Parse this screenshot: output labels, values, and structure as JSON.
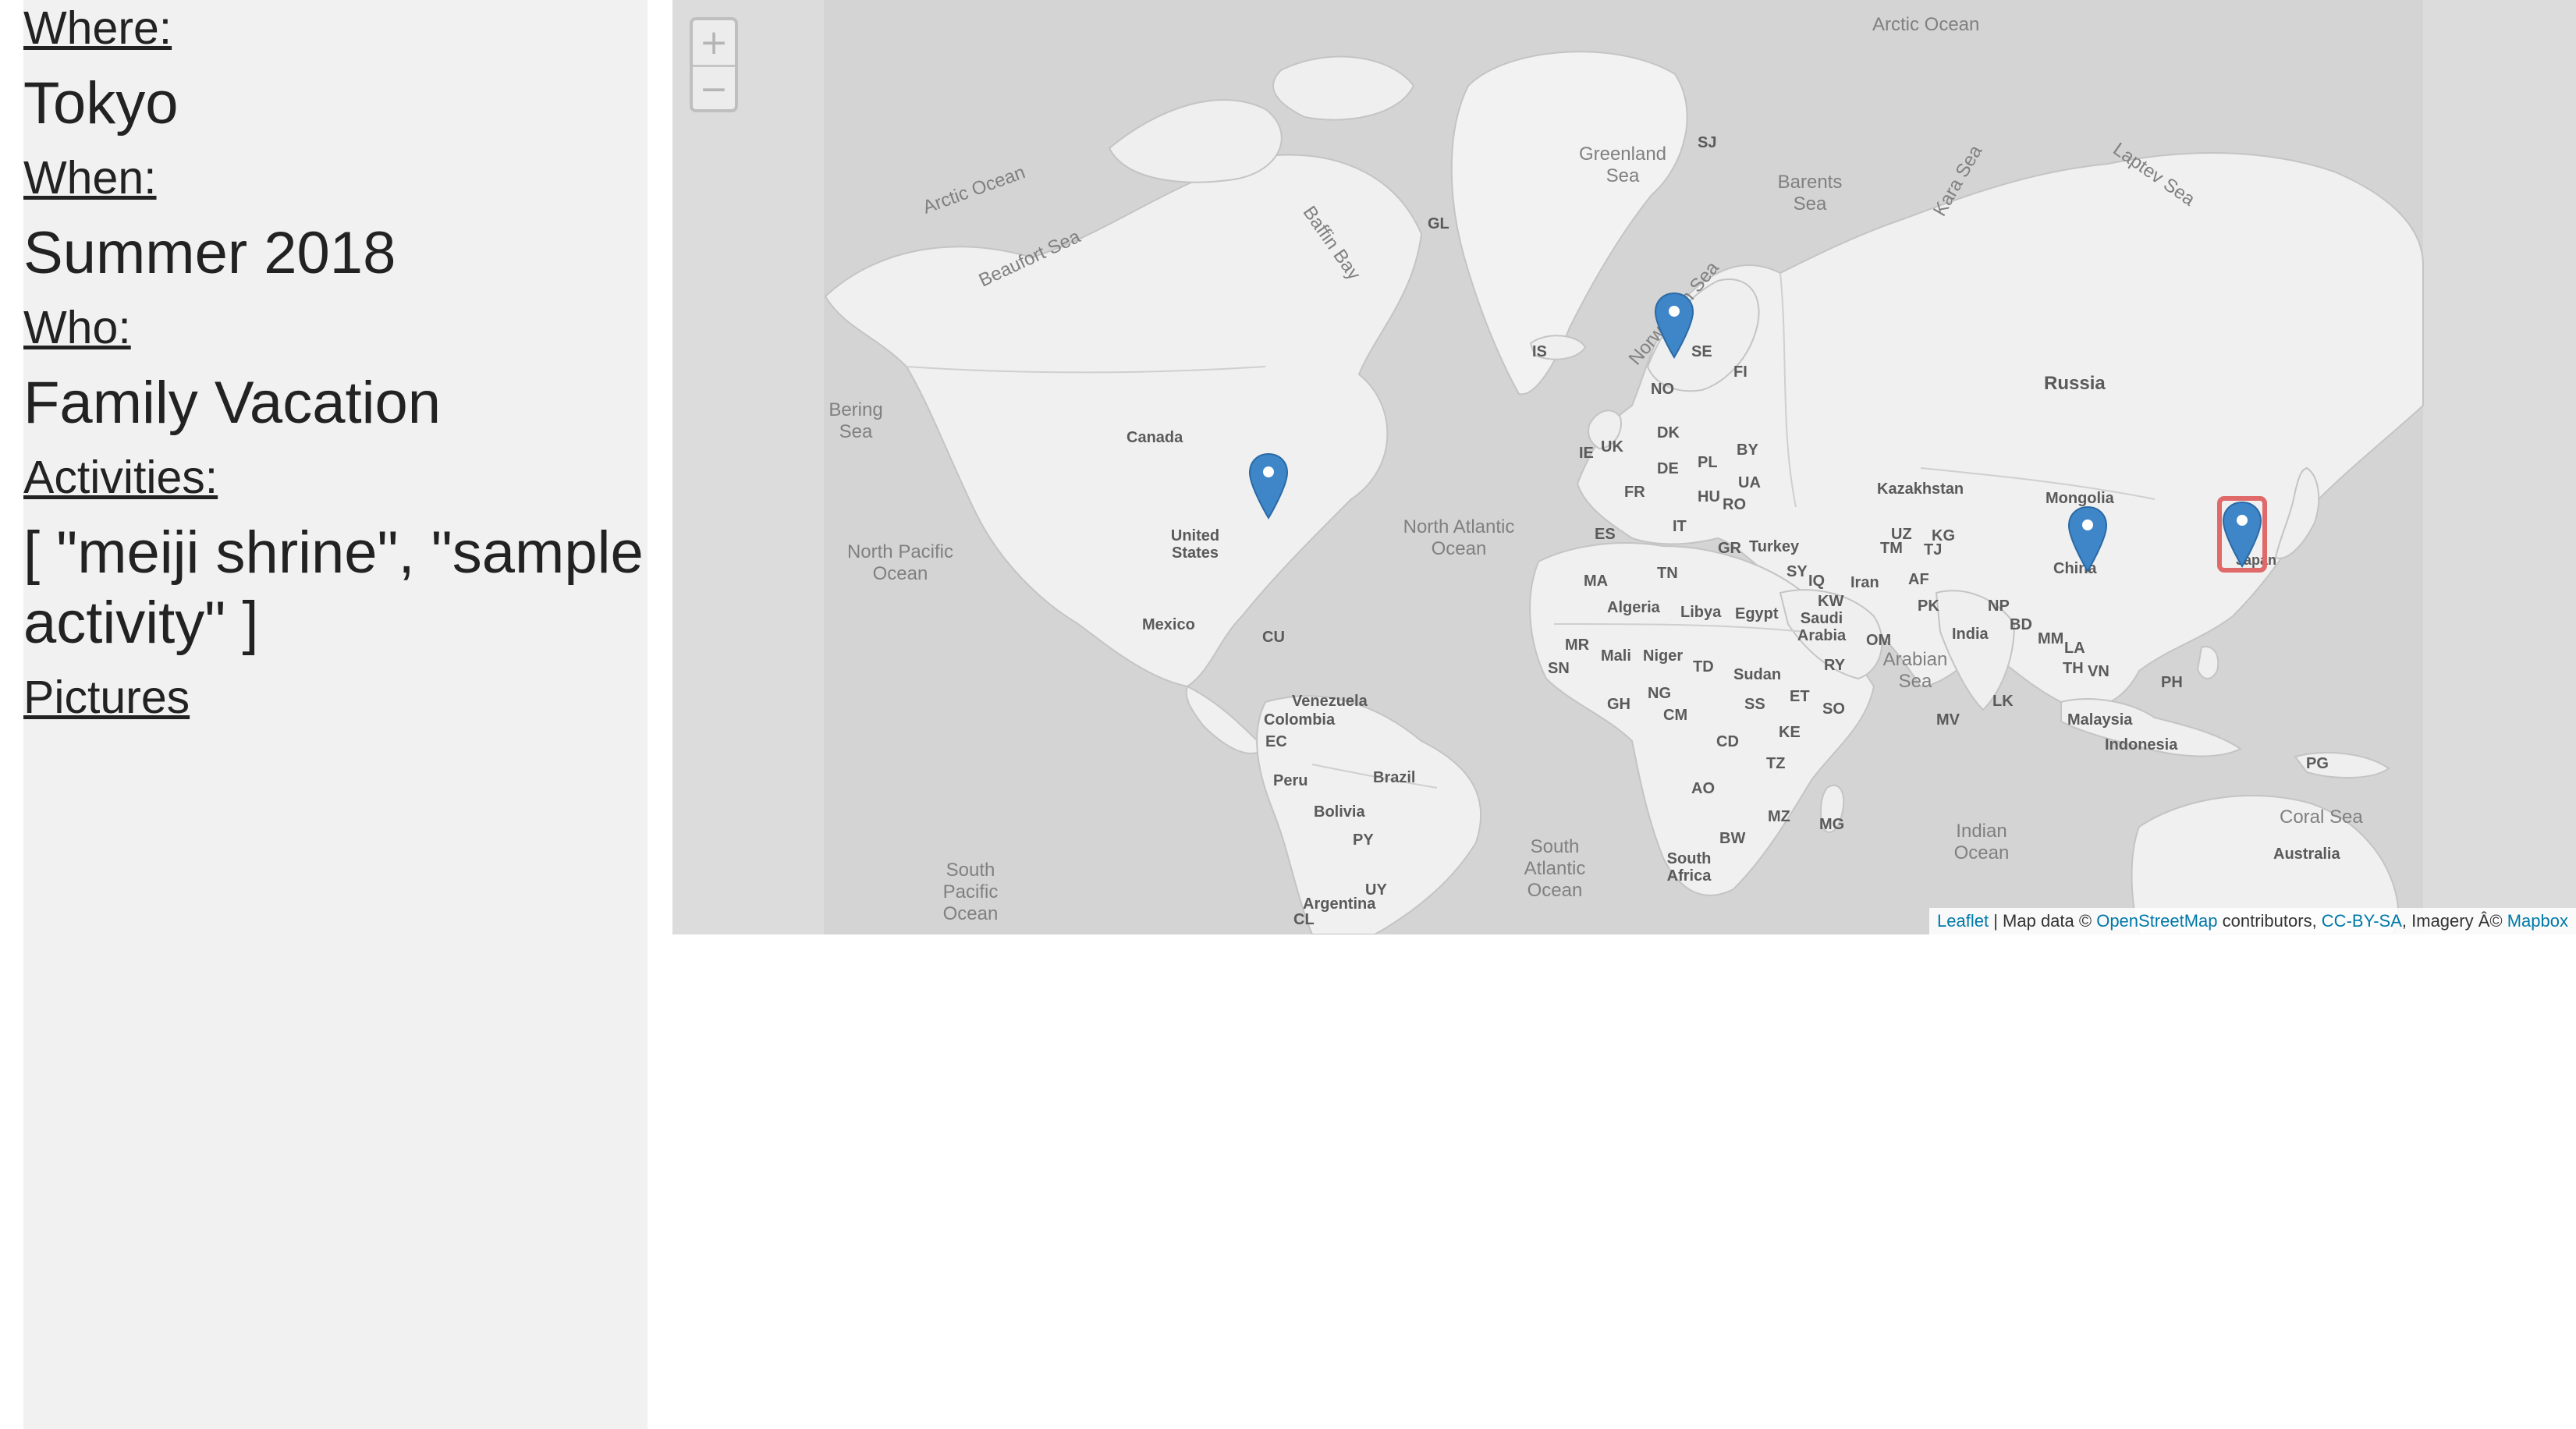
{
  "sidebar": {
    "where_label": "Where:",
    "where_value": "Tokyo",
    "when_label": "When:",
    "when_value": "Summer 2018",
    "who_label": "Who:",
    "who_value": "Family Vacation",
    "activities_label": "Activities:",
    "activities_value": "[ \"meiji shrine\", \"sample activity\" ]",
    "pictures_link": "Pictures"
  },
  "map": {
    "zoom_in": "+",
    "zoom_out": "−",
    "marker_color": "#3f86c8",
    "selected_outline_color": "#e06a6a",
    "labels": {
      "arctic_ocean_top": "Arctic Ocean",
      "arctic_ocean_left": "Arctic Ocean",
      "greenland_sea": "Greenland Sea",
      "barents_sea": "Barents Sea",
      "kara_sea": "Kara Sea",
      "laptev_sea": "Laptev Sea",
      "beaufort_sea": "Beaufort Sea",
      "baffin_bay": "Baffin Bay",
      "norwegian_sea": "Norwegian Sea",
      "bering_sea": "Bering Sea",
      "north_pacific": "North Pacific Ocean",
      "north_atlantic": "North Atlantic Ocean",
      "south_pacific": "South Pacific Ocean",
      "south_atlantic": "South Atlantic Ocean",
      "indian_ocean": "Indian Ocean",
      "arabian_sea": "Arabian Sea",
      "coral_sea": "Coral Sea",
      "gl": "GL",
      "sj": "SJ",
      "is": "IS",
      "no": "NO",
      "se": "SE",
      "fi": "FI",
      "russia": "Russia",
      "canada": "Canada",
      "united_states": "United States",
      "mexico": "Mexico",
      "cu": "CU",
      "venezuela": "Venezuela",
      "colombia": "Colombia",
      "ec": "EC",
      "peru": "Peru",
      "brazil": "Brazil",
      "bolivia": "Bolivia",
      "py": "PY",
      "uy": "UY",
      "argentina": "Argentina",
      "cl": "CL",
      "kazakhstan": "Kazakhstan",
      "mongolia": "Mongolia",
      "china": "China",
      "japan": "Japan",
      "india": "India",
      "iran": "Iran",
      "turkey": "Turkey",
      "algeria": "Algeria",
      "libya": "Libya",
      "egypt": "Egypt",
      "sudan": "Sudan",
      "mali": "Mali",
      "niger": "Niger",
      "saudi_arabia": "Saudi Arabia",
      "indonesia": "Indonesia",
      "malaysia": "Malaysia",
      "australia": "Australia",
      "south_africa": "South Africa",
      "uk": "UK",
      "ie": "IE",
      "fr": "FR",
      "es": "ES",
      "de": "DE",
      "pl": "PL",
      "ua": "UA",
      "by": "BY",
      "dk": "DK",
      "it": "IT",
      "gr": "GR",
      "ma": "MA",
      "tn": "TN",
      "mr": "MR",
      "sn": "SN",
      "gh": "GH",
      "ng": "NG",
      "td": "TD",
      "cm": "CM",
      "cd": "CD",
      "ao": "AO",
      "tz": "TZ",
      "ke": "KE",
      "et": "ET",
      "so": "SO",
      "ss": "SS",
      "mz": "MZ",
      "mg": "MG",
      "bw": "BW",
      "iq": "IQ",
      "sy": "SY",
      "kw": "KW",
      "om": "OM",
      "ry": "RY",
      "pk": "PK",
      "af": "AF",
      "tm": "TM",
      "uz": "UZ",
      "kg": "KG",
      "tj": "TJ",
      "np": "NP",
      "bd": "BD",
      "mm": "MM",
      "la": "LA",
      "th": "TH",
      "vn": "VN",
      "ph": "PH",
      "lk": "LK",
      "mv": "MV",
      "pg": "PG",
      "hu": "HU",
      "ro": "RO"
    },
    "attribution": {
      "leaflet": "Leaflet",
      "sep": " | Map data © ",
      "osm": "OpenStreetMap",
      "contributors": " contributors, ",
      "ccbysa": "CC-BY-SA",
      "imagery": ", Imagery Â© ",
      "mapbox": "Mapbox"
    }
  }
}
